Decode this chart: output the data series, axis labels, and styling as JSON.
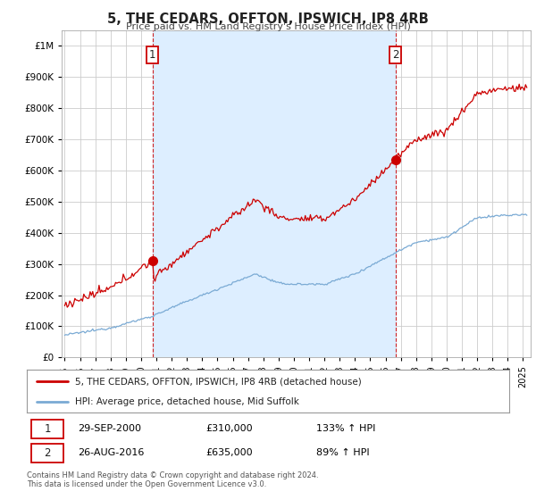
{
  "title": "5, THE CEDARS, OFFTON, IPSWICH, IP8 4RB",
  "subtitle": "Price paid vs. HM Land Registry's House Price Index (HPI)",
  "legend_line1": "5, THE CEDARS, OFFTON, IPSWICH, IP8 4RB (detached house)",
  "legend_line2": "HPI: Average price, detached house, Mid Suffolk",
  "sale1_date": "29-SEP-2000",
  "sale1_price": "£310,000",
  "sale1_hpi": "133% ↑ HPI",
  "sale2_date": "26-AUG-2016",
  "sale2_price": "£635,000",
  "sale2_hpi": "89% ↑ HPI",
  "footnote": "Contains HM Land Registry data © Crown copyright and database right 2024.\nThis data is licensed under the Open Government Licence v3.0.",
  "sale1_year": 2000.75,
  "sale1_value": 310000,
  "sale2_year": 2016.65,
  "sale2_value": 635000,
  "hpi_color": "#7aaad4",
  "price_color": "#cc0000",
  "shade_color": "#ddeeff",
  "background_color": "#ffffff",
  "grid_color": "#cccccc",
  "ylim": [
    0,
    1050000
  ],
  "xlim_start": 1994.8,
  "xlim_end": 2025.5,
  "yticks": [
    0,
    100000,
    200000,
    300000,
    400000,
    500000,
    600000,
    700000,
    800000,
    900000,
    1000000
  ]
}
